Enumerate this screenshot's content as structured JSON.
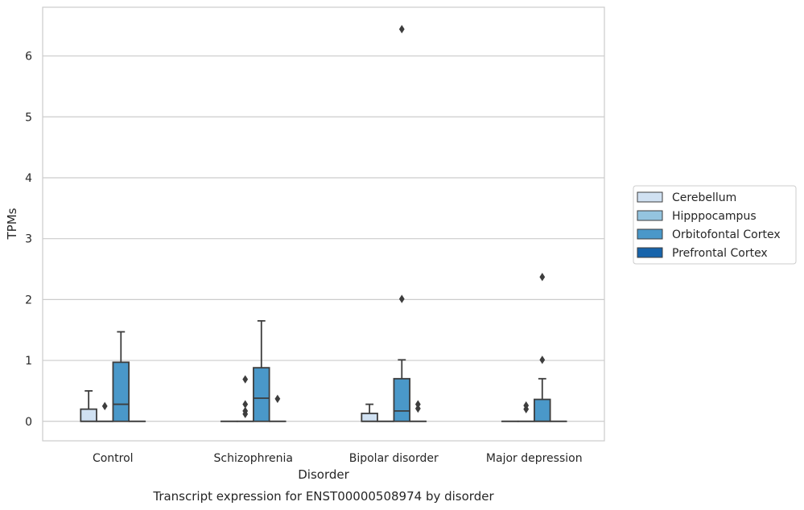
{
  "chart_data": {
    "type": "box",
    "title": "Transcript expression for ENST00000508974 by disorder",
    "xlabel": "Disorder",
    "ylabel": "TPMs",
    "ylim": [
      -0.32,
      6.8
    ],
    "yticks": [
      0,
      1,
      2,
      3,
      4,
      5,
      6
    ],
    "grid": true,
    "legend_position": "right",
    "categories": [
      "Control",
      "Schizophrenia",
      "Bipolar disorder",
      "Major depression"
    ],
    "series": [
      {
        "name": "Cerebellum",
        "color": "#d0e1f2",
        "boxes": [
          {
            "q1": 0,
            "median": 0,
            "q3": 0.2,
            "whisker_low": 0,
            "whisker_high": 0.5,
            "outliers": []
          },
          {
            "q1": 0,
            "median": 0,
            "q3": 0,
            "whisker_low": 0,
            "whisker_high": 0,
            "outliers": []
          },
          {
            "q1": 0,
            "median": 0,
            "q3": 0.13,
            "whisker_low": 0,
            "whisker_high": 0.28,
            "outliers": []
          },
          {
            "q1": 0,
            "median": 0,
            "q3": 0,
            "whisker_low": 0,
            "whisker_high": 0,
            "outliers": []
          }
        ]
      },
      {
        "name": "Hipppocampus",
        "color": "#94c4df",
        "boxes": [
          {
            "q1": 0,
            "median": 0,
            "q3": 0,
            "whisker_low": 0,
            "whisker_high": 0,
            "outliers": [
              0.25
            ]
          },
          {
            "q1": 0,
            "median": 0,
            "q3": 0,
            "whisker_low": 0,
            "whisker_high": 0,
            "outliers": [
              0.12,
              0.17,
              0.28,
              0.69
            ]
          },
          {
            "q1": 0,
            "median": 0,
            "q3": 0,
            "whisker_low": 0,
            "whisker_high": 0,
            "outliers": []
          },
          {
            "q1": 0,
            "median": 0,
            "q3": 0,
            "whisker_low": 0,
            "whisker_high": 0,
            "outliers": [
              0.2,
              0.26
            ]
          }
        ]
      },
      {
        "name": "Orbitofontal Cortex",
        "color": "#4a98c9",
        "boxes": [
          {
            "q1": 0,
            "median": 0.28,
            "q3": 0.97,
            "whisker_low": 0,
            "whisker_high": 1.47,
            "outliers": []
          },
          {
            "q1": 0,
            "median": 0.38,
            "q3": 0.88,
            "whisker_low": 0,
            "whisker_high": 1.65,
            "outliers": []
          },
          {
            "q1": 0,
            "median": 0.17,
            "q3": 0.7,
            "whisker_low": 0,
            "whisker_high": 1.01,
            "outliers": [
              2.01,
              6.44
            ]
          },
          {
            "q1": 0,
            "median": 0,
            "q3": 0.36,
            "whisker_low": 0,
            "whisker_high": 0.7,
            "outliers": [
              1.01,
              2.37
            ]
          }
        ]
      },
      {
        "name": "Prefrontal Cortex",
        "color": "#1764ab",
        "boxes": [
          {
            "q1": 0,
            "median": 0,
            "q3": 0,
            "whisker_low": 0,
            "whisker_high": 0,
            "outliers": []
          },
          {
            "q1": 0,
            "median": 0,
            "q3": 0,
            "whisker_low": 0,
            "whisker_high": 0,
            "outliers": [
              0.37
            ]
          },
          {
            "q1": 0,
            "median": 0,
            "q3": 0,
            "whisker_low": 0,
            "whisker_high": 0,
            "outliers": [
              0.21,
              0.28
            ]
          },
          {
            "q1": 0,
            "median": 0,
            "q3": 0,
            "whisker_low": 0,
            "whisker_high": 0,
            "outliers": []
          }
        ]
      }
    ]
  },
  "colors": {
    "grid": "#cccccc",
    "frame": "#cccccc",
    "box_edge": "#3d3d3d",
    "outlier": "#3d3d3d"
  }
}
